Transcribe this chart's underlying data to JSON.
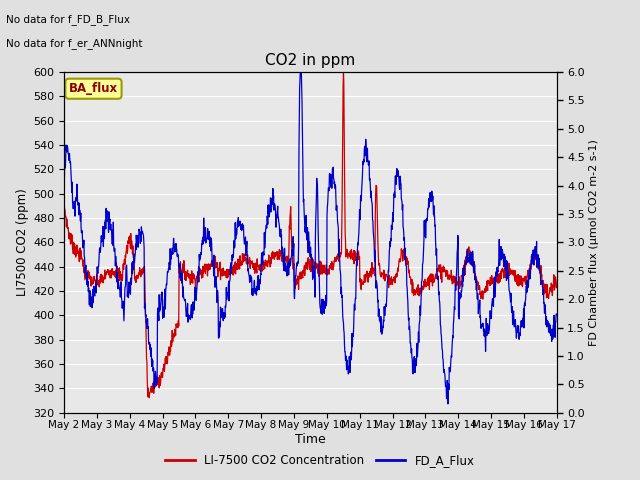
{
  "title": "CO2 in ppm",
  "xlabel": "Time",
  "ylabel_left": "LI7500 CO2 (ppm)",
  "ylabel_right": "FD Chamber flux (μmol CO2 m-2 s-1)",
  "note1": "No data for f_FD_B_Flux",
  "note2": "No data for f_er_ANNnight",
  "legend_label": "BA_flux",
  "series1_label": "LI-7500 CO2 Concentration",
  "series2_label": "FD_A_Flux",
  "ylim_left": [
    320,
    600
  ],
  "ylim_right": [
    0.0,
    6.0
  ],
  "yticks_left": [
    320,
    340,
    360,
    380,
    400,
    420,
    440,
    460,
    480,
    500,
    520,
    540,
    560,
    580,
    600
  ],
  "yticks_right": [
    0.0,
    0.5,
    1.0,
    1.5,
    2.0,
    2.5,
    3.0,
    3.5,
    4.0,
    4.5,
    5.0,
    5.5,
    6.0
  ],
  "xtick_labels": [
    "May 2",
    "May 3",
    "May 4",
    "May 5",
    "May 6",
    "May 7",
    "May 8",
    "May 9",
    "May 10",
    "May 11",
    "May 12",
    "May 13",
    "May 14",
    "May 15",
    "May 16",
    "May 17"
  ],
  "color_red": "#cc0000",
  "color_blue": "#0000cc",
  "bg_color": "#e0e0e0",
  "plot_bg_color": "#e8e8e8",
  "grid_color": "#ffffff",
  "legend_box_facecolor": "#ffff99",
  "legend_box_edgecolor": "#999900",
  "legend_text_color": "#8B0000"
}
